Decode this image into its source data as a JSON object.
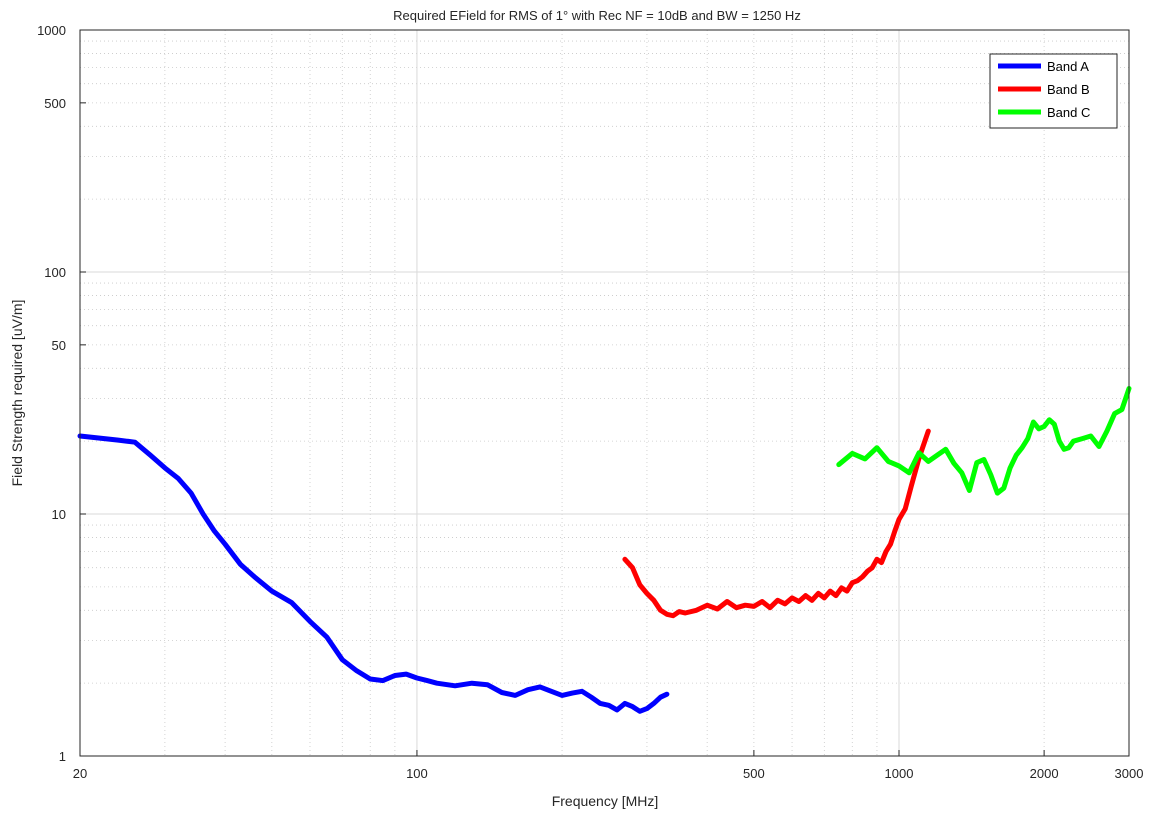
{
  "chart_data": {
    "type": "line",
    "title": "Required EField for RMS of 1° with Rec NF = 10dB and BW = 1250 Hz",
    "xlabel": "Frequency [MHz]",
    "ylabel": "Field Strength required [uV/m]",
    "xscale": "log",
    "yscale": "log",
    "xlim": [
      20,
      3000
    ],
    "ylim": [
      1,
      1000
    ],
    "x_ticks": [
      20,
      100,
      500,
      1000,
      2000,
      3000
    ],
    "x_tick_labels": [
      "20",
      "100",
      "500",
      "1000",
      "2000",
      "3000"
    ],
    "y_ticks": [
      1,
      10,
      50,
      100,
      500,
      1000
    ],
    "y_tick_labels": [
      "1",
      "10",
      "50",
      "100",
      "500",
      "1000"
    ],
    "grid": true,
    "legend_position": "top-right",
    "series": [
      {
        "name": "Band A",
        "color": "#0000ff",
        "x": [
          20,
          24,
          26,
          28,
          30,
          32,
          34,
          36,
          38,
          40,
          43,
          46,
          50,
          55,
          60,
          65,
          70,
          75,
          80,
          85,
          90,
          95,
          100,
          105,
          110,
          120,
          130,
          140,
          150,
          160,
          170,
          180,
          190,
          200,
          210,
          220,
          230,
          240,
          250,
          260,
          270,
          280,
          290,
          300,
          310,
          320,
          330
        ],
        "y": [
          21,
          20.2,
          19.8,
          17.5,
          15.5,
          14,
          12.2,
          10,
          8.5,
          7.5,
          6.2,
          5.5,
          4.8,
          4.3,
          3.6,
          3.1,
          2.5,
          2.25,
          2.08,
          2.05,
          2.15,
          2.18,
          2.1,
          2.05,
          2.0,
          1.95,
          2.0,
          1.97,
          1.83,
          1.78,
          1.88,
          1.93,
          1.85,
          1.78,
          1.82,
          1.85,
          1.75,
          1.65,
          1.62,
          1.55,
          1.65,
          1.6,
          1.53,
          1.57,
          1.65,
          1.75,
          1.8
        ]
      },
      {
        "name": "Band B",
        "color": "#ff0000",
        "x": [
          270,
          280,
          290,
          300,
          310,
          320,
          330,
          340,
          350,
          360,
          380,
          400,
          420,
          440,
          460,
          480,
          500,
          520,
          540,
          560,
          580,
          600,
          620,
          640,
          660,
          680,
          700,
          720,
          740,
          760,
          780,
          800,
          820,
          840,
          860,
          880,
          900,
          920,
          940,
          960,
          980,
          1000,
          1030,
          1060,
          1100,
          1150
        ],
        "y": [
          6.5,
          6.0,
          5.1,
          4.7,
          4.4,
          4.0,
          3.85,
          3.8,
          3.95,
          3.9,
          4.0,
          4.2,
          4.05,
          4.35,
          4.1,
          4.2,
          4.15,
          4.35,
          4.1,
          4.4,
          4.25,
          4.5,
          4.35,
          4.6,
          4.4,
          4.7,
          4.5,
          4.8,
          4.6,
          4.95,
          4.8,
          5.2,
          5.3,
          5.5,
          5.8,
          6.0,
          6.5,
          6.3,
          7.0,
          7.5,
          8.5,
          9.5,
          10.5,
          13,
          17,
          22
        ]
      },
      {
        "name": "Band C",
        "color": "#00ff00",
        "x": [
          750,
          800,
          850,
          900,
          950,
          1000,
          1050,
          1100,
          1150,
          1200,
          1250,
          1300,
          1350,
          1400,
          1450,
          1500,
          1550,
          1600,
          1650,
          1700,
          1750,
          1800,
          1850,
          1900,
          1950,
          2000,
          2050,
          2100,
          2150,
          2200,
          2250,
          2300,
          2400,
          2500,
          2600,
          2700,
          2800,
          2900,
          3000
        ],
        "y": [
          16,
          17.8,
          16.9,
          18.8,
          16.5,
          15.8,
          14.8,
          17.9,
          16.5,
          17.5,
          18.5,
          16.2,
          14.8,
          12.5,
          16.3,
          16.8,
          14.5,
          12.2,
          12.8,
          15.5,
          17.5,
          18.8,
          20.5,
          24,
          22.5,
          23,
          24.5,
          23.5,
          20,
          18.5,
          18.8,
          20,
          20.5,
          21,
          19,
          22,
          26,
          27,
          33
        ]
      }
    ]
  }
}
